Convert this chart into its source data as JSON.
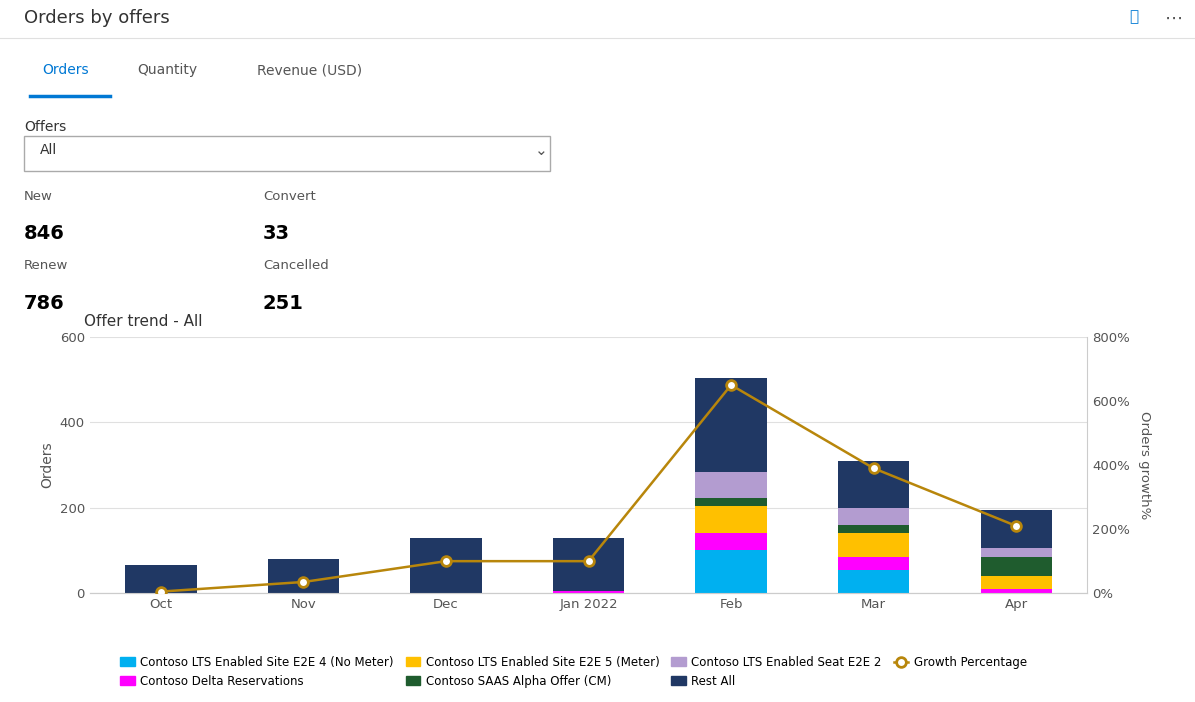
{
  "title": "Orders by offers",
  "chart_subtitle": "Offer trend - All",
  "tabs": [
    "Orders",
    "Quantity",
    "Revenue (USD)"
  ],
  "active_tab": "Orders",
  "filter_label": "Offers",
  "filter_value": "All",
  "stats": [
    {
      "label": "New",
      "value": "846"
    },
    {
      "label": "Convert",
      "value": "33"
    },
    {
      "label": "Renew",
      "value": "786"
    },
    {
      "label": "Cancelled",
      "value": "251"
    }
  ],
  "months": [
    "Oct",
    "Nov",
    "Dec",
    "Jan 2022",
    "Feb",
    "Mar",
    "Apr"
  ],
  "series": {
    "Contoso LTS Enabled Site E2E 4 (No Meter)": {
      "color": "#00B0F0",
      "values": [
        0,
        0,
        0,
        0,
        100,
        55,
        0
      ]
    },
    "Contoso Delta Reservations": {
      "color": "#FF00FF",
      "values": [
        0,
        0,
        0,
        5,
        40,
        30,
        10
      ]
    },
    "Contoso LTS Enabled Site E2E 5 (Meter)": {
      "color": "#FFC000",
      "values": [
        0,
        0,
        0,
        0,
        65,
        55,
        30
      ]
    },
    "Contoso SAAS Alpha Offer (CM)": {
      "color": "#1F5C2E",
      "values": [
        0,
        0,
        0,
        0,
        18,
        20,
        45
      ]
    },
    "Contoso LTS Enabled Seat E2E 2": {
      "color": "#B39CD0",
      "values": [
        0,
        0,
        0,
        0,
        60,
        40,
        20
      ]
    },
    "Rest All": {
      "color": "#203864",
      "values": [
        65,
        80,
        130,
        125,
        220,
        110,
        90
      ]
    }
  },
  "growth_percentage": {
    "label": "Growth Percentage",
    "color": "#B8860B",
    "values": [
      5,
      35,
      100,
      100,
      650,
      390,
      210
    ]
  },
  "left_ylim": [
    0,
    600
  ],
  "left_yticks": [
    0,
    200,
    400,
    600
  ],
  "right_ylim": [
    0,
    800
  ],
  "right_yticks": [
    0,
    200,
    400,
    600,
    800
  ],
  "right_yticklabels": [
    "0%",
    "200%",
    "400%",
    "600%",
    "800%"
  ],
  "left_ylabel": "Orders",
  "right_ylabel": "Orders growth%",
  "background_color": "#FFFFFF",
  "grid_color": "#E0E0E0"
}
